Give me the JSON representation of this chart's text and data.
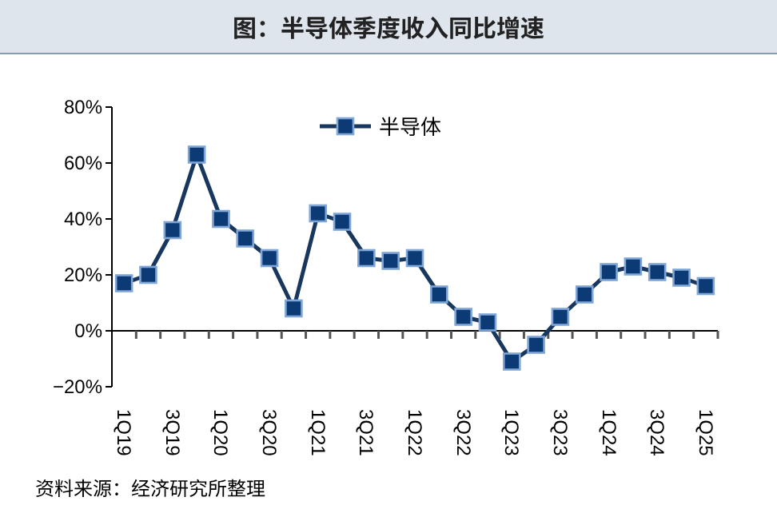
{
  "chart_data": {
    "type": "line",
    "title": "图：半导体季度收入同比增速",
    "categories": [
      "1Q19",
      null,
      "3Q19",
      null,
      "1Q20",
      null,
      "3Q20",
      null,
      "1Q21",
      null,
      "3Q21",
      null,
      "1Q22",
      null,
      "3Q22",
      null,
      "1Q23",
      null,
      "3Q23",
      null,
      "1Q24",
      null,
      "3Q24",
      null,
      "1Q25"
    ],
    "series": [
      {
        "name": "半导体",
        "color": "#17375e",
        "values": [
          17,
          20,
          36,
          63,
          40,
          33,
          26,
          8,
          42,
          39,
          26,
          25,
          26,
          13,
          5,
          3,
          -11,
          -5,
          5,
          13,
          21,
          23,
          21,
          19,
          16
        ]
      }
    ],
    "ylim": [
      -20,
      80
    ],
    "yticks": [
      {
        "value": -20,
        "label": "−20%"
      },
      {
        "value": 0,
        "label": "0%"
      },
      {
        "value": 20,
        "label": "20%"
      },
      {
        "value": 40,
        "label": "40%"
      },
      {
        "value": 60,
        "label": "60%"
      },
      {
        "value": 80,
        "label": "80%"
      }
    ],
    "marker": "square",
    "legend": "top",
    "annotations": [
      "资料来源：经济研究所整理"
    ]
  }
}
